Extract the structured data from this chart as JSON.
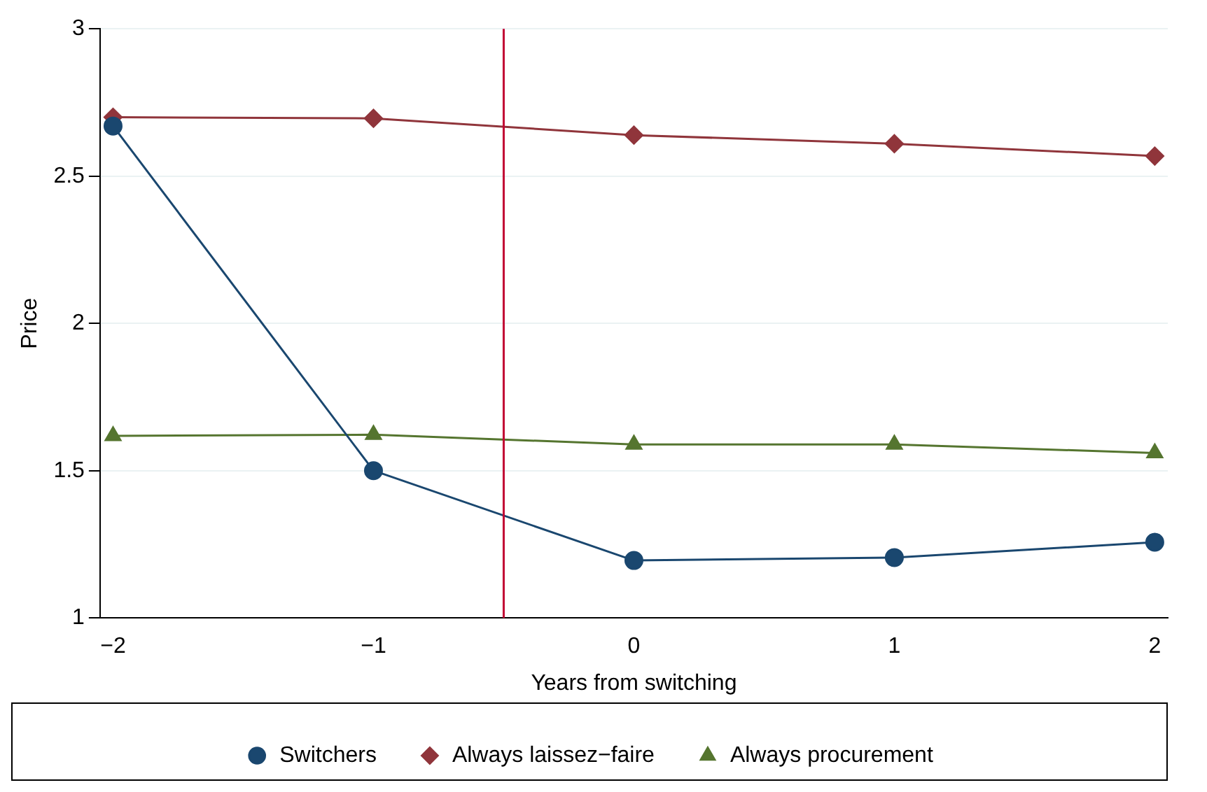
{
  "chart_data": {
    "type": "line",
    "xlabel": "Years from switching",
    "ylabel": "Price",
    "x": [
      -2,
      -1,
      0,
      1,
      2
    ],
    "xlim": [
      -2.05,
      2.05
    ],
    "xticks": [
      {
        "value": -2,
        "label": "−2"
      },
      {
        "value": -1,
        "label": "−1"
      },
      0,
      1,
      2
    ],
    "ylim": [
      1,
      3
    ],
    "yticks": [
      1,
      1.5,
      2,
      2.5,
      3
    ],
    "grid": "y",
    "legend": "bottom",
    "ref_lines": [
      {
        "axis": "x",
        "value": -0.5,
        "color": "#c10534"
      }
    ],
    "series": [
      {
        "name": "Switchers",
        "color": "#1a476f",
        "marker": "circle",
        "values": [
          2.67,
          1.5,
          1.195,
          1.205,
          1.257
        ]
      },
      {
        "name": "Always laissez−faire",
        "color": "#90353b",
        "marker": "diamond",
        "values": [
          2.7,
          2.696,
          2.639,
          2.61,
          2.568
        ]
      },
      {
        "name": "Always procurement",
        "color": "#55752f",
        "marker": "triangle",
        "values": [
          1.618,
          1.622,
          1.589,
          1.589,
          1.56
        ]
      }
    ]
  }
}
